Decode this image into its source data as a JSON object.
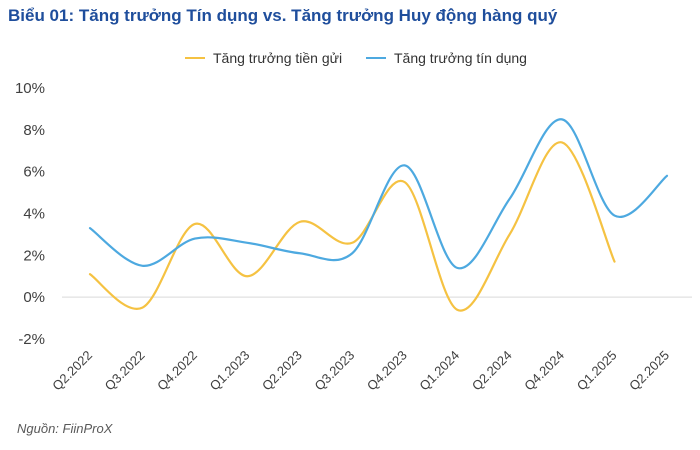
{
  "title": "Biểu 01: Tăng trưởng Tín dụng vs. Tăng trưởng Huy động hàng quý",
  "source": "Nguồn: FiinProX",
  "chart_data": {
    "type": "line",
    "title": "Biểu 01: Tăng trưởng Tín dụng vs. Tăng trưởng Huy động hàng quý",
    "xlabel": "",
    "ylabel": "",
    "categories": [
      "Q2.2022",
      "Q3.2022",
      "Q4.2022",
      "Q1.2023",
      "Q2.2023",
      "Q3.2023",
      "Q4.2023",
      "Q1.2024",
      "Q2.2024",
      "Q4.2024",
      "Q1.2025",
      "Q2.2025"
    ],
    "x_tick_labels": [
      "Q2.2022",
      "Q3.2022",
      "Q4.2022",
      "Q1.2023",
      "Q2.2023",
      "Q3.2023",
      "Q4.2023",
      "Q1.2024",
      "Q2.2024",
      "Q4.2024",
      "Q1.2025",
      "Q2.2025"
    ],
    "y_tick_labels": [
      "10%",
      "8%",
      "6%",
      "4%",
      "2%",
      "0%",
      "-2%"
    ],
    "ylim": [
      -2,
      10
    ],
    "y_ticks": [
      -2,
      0,
      2,
      4,
      6,
      8,
      10
    ],
    "grid": false,
    "legend_position": "top-center",
    "series": [
      {
        "name": "Tăng trưởng tiền gửi",
        "color": "#f5c242",
        "values": [
          1.1,
          -0.5,
          3.5,
          1.0,
          3.6,
          2.6,
          5.5,
          -0.6,
          3.0,
          7.4,
          1.7,
          null
        ]
      },
      {
        "name": "Tăng trưởng tín dụng",
        "color": "#4da9e0",
        "values": [
          3.3,
          1.5,
          2.8,
          2.6,
          2.1,
          2.1,
          6.3,
          1.4,
          4.7,
          8.5,
          3.9,
          5.8
        ]
      }
    ]
  }
}
